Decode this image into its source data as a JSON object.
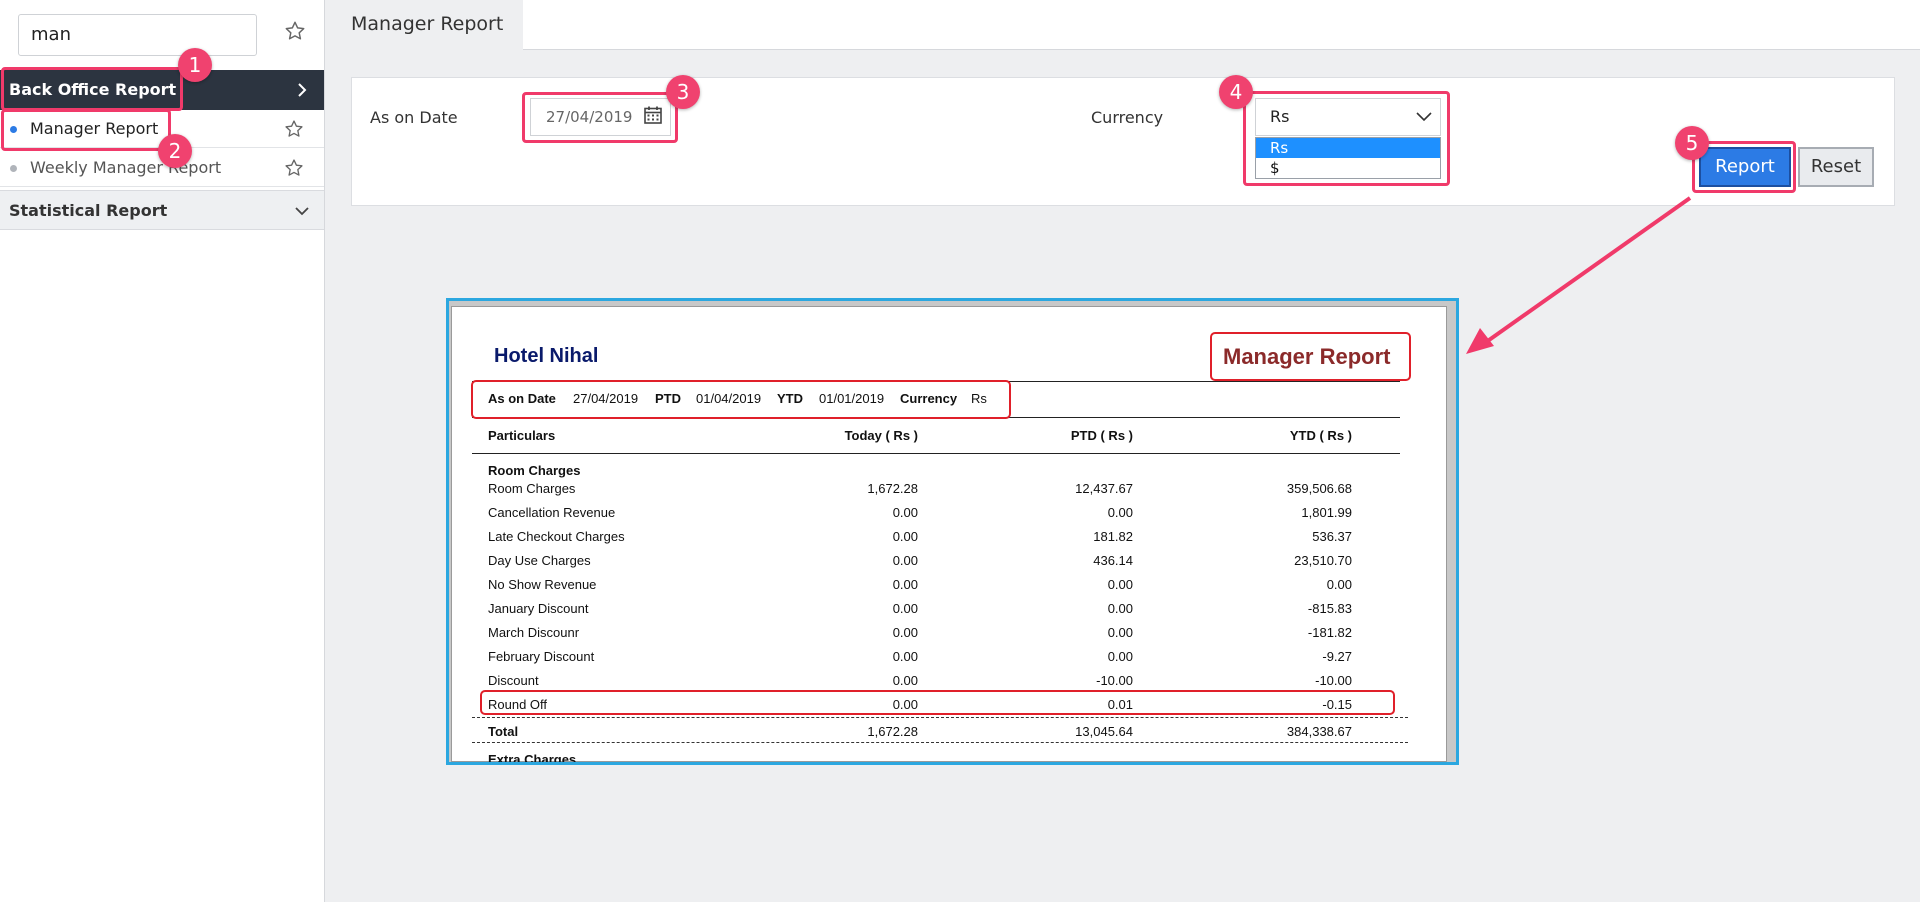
{
  "sidebar": {
    "search_value": "man",
    "back_office_label": "Back Office Report",
    "items": [
      {
        "label": "Manager Report",
        "dot_color": "#2c7be5"
      },
      {
        "label": "Weekly Manager Report",
        "dot_color": "#b0b4ba"
      }
    ],
    "statistical_label": "Statistical Report"
  },
  "page_title": "Manager Report",
  "filters": {
    "as_on_date_label": "As on Date",
    "as_on_date_value": "27/04/2019",
    "currency_label": "Currency",
    "currency_selected": "Rs",
    "currency_options": [
      "Rs",
      "$"
    ],
    "report_button": "Report",
    "reset_button": "Reset"
  },
  "report": {
    "hotel_name": "Hotel Nihal",
    "title": "Manager Report",
    "meta": {
      "as_on_date_label": "As on Date",
      "as_on_date": "27/04/2019",
      "ptd_label": "PTD",
      "ptd": "01/04/2019",
      "ytd_label": "YTD",
      "ytd": "01/01/2019",
      "currency_label": "Currency",
      "currency": "Rs"
    },
    "columns": [
      "Particulars",
      "Today ( Rs )",
      "PTD ( Rs )",
      "YTD ( Rs )"
    ],
    "group": "Room Charges",
    "rows": [
      {
        "name": "Room Charges",
        "today": "1,672.28",
        "ptd": "12,437.67",
        "ytd": "359,506.68"
      },
      {
        "name": "Cancellation Revenue",
        "today": "0.00",
        "ptd": "0.00",
        "ytd": "1,801.99"
      },
      {
        "name": "Late Checkout Charges",
        "today": "0.00",
        "ptd": "181.82",
        "ytd": "536.37"
      },
      {
        "name": "Day Use Charges",
        "today": "0.00",
        "ptd": "436.14",
        "ytd": "23,510.70"
      },
      {
        "name": "No Show Revenue",
        "today": "0.00",
        "ptd": "0.00",
        "ytd": "0.00"
      },
      {
        "name": "January Discount",
        "today": "0.00",
        "ptd": "0.00",
        "ytd": "-815.83"
      },
      {
        "name": "March Discounr",
        "today": "0.00",
        "ptd": "0.00",
        "ytd": "-181.82"
      },
      {
        "name": "February Discount",
        "today": "0.00",
        "ptd": "0.00",
        "ytd": "-9.27"
      },
      {
        "name": "Discount",
        "today": "0.00",
        "ptd": "-10.00",
        "ytd": "-10.00"
      },
      {
        "name": "Round Off",
        "today": "0.00",
        "ptd": "0.01",
        "ytd": "-0.15"
      }
    ],
    "total": {
      "name": "Total",
      "today": "1,672.28",
      "ptd": "13,045.64",
      "ytd": "384,338.67"
    },
    "next_group": "Extra Charges"
  },
  "annotations": [
    "1",
    "2",
    "3",
    "4",
    "5"
  ],
  "colors": {
    "annotation": "#f03a6a",
    "preview_border": "#2ba7e0",
    "primary": "#2c7be5"
  }
}
